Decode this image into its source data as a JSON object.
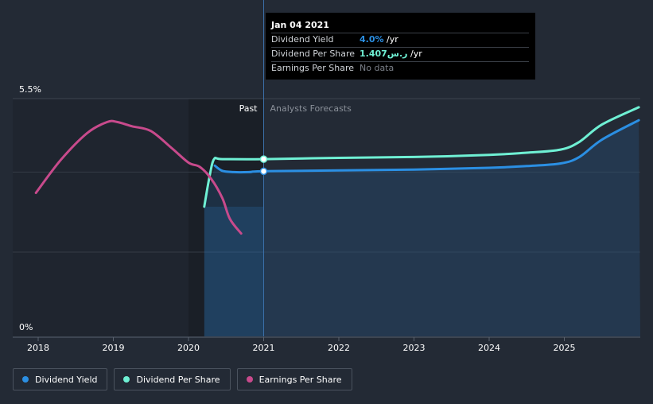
{
  "chart_data": {
    "type": "line",
    "x_ticks": [
      "2018",
      "2019",
      "2020",
      "2021",
      "2022",
      "2023",
      "2024",
      "2025"
    ],
    "y_ticks": [
      "0%",
      "5.5%"
    ],
    "region_labels": {
      "past": "Past",
      "forecast": "Analysts Forecasts"
    },
    "series": [
      {
        "name": "Dividend Yield",
        "color": "#2b8fe3",
        "points": [
          [
            2020.35,
            3.95
          ],
          [
            2020.45,
            3.83
          ],
          [
            2020.6,
            3.8
          ],
          [
            2020.8,
            3.8
          ],
          [
            2021.0,
            3.82
          ],
          [
            2022.0,
            3.84
          ],
          [
            2023.0,
            3.86
          ],
          [
            2024.0,
            3.9
          ],
          [
            2024.5,
            3.94
          ],
          [
            2024.95,
            4.0
          ],
          [
            2025.2,
            4.15
          ],
          [
            2025.5,
            4.55
          ],
          [
            2025.99,
            5.0
          ]
        ]
      },
      {
        "name": "Dividend Per Share",
        "color": "#6ff0d4",
        "points": [
          [
            2020.21,
            3.0
          ],
          [
            2020.28,
            3.7
          ],
          [
            2020.34,
            4.1
          ],
          [
            2020.45,
            4.1
          ],
          [
            2021.0,
            4.1
          ],
          [
            2022.0,
            4.13
          ],
          [
            2023.0,
            4.15
          ],
          [
            2024.0,
            4.2
          ],
          [
            2024.5,
            4.25
          ],
          [
            2024.95,
            4.32
          ],
          [
            2025.2,
            4.5
          ],
          [
            2025.5,
            4.9
          ],
          [
            2025.99,
            5.3
          ]
        ]
      },
      {
        "name": "Earnings Per Share",
        "color": "#c84a8c",
        "points": [
          [
            2017.97,
            3.32
          ],
          [
            2018.3,
            4.08
          ],
          [
            2018.65,
            4.7
          ],
          [
            2018.92,
            4.96
          ],
          [
            2019.05,
            4.96
          ],
          [
            2019.25,
            4.86
          ],
          [
            2019.5,
            4.75
          ],
          [
            2019.78,
            4.35
          ],
          [
            2020.0,
            4.02
          ],
          [
            2020.15,
            3.92
          ],
          [
            2020.3,
            3.65
          ],
          [
            2020.45,
            3.2
          ],
          [
            2020.55,
            2.72
          ],
          [
            2020.7,
            2.38
          ]
        ]
      }
    ],
    "highlight_x": 2021.0,
    "highlight_points": [
      {
        "series": "Dividend Yield",
        "y": 3.82
      },
      {
        "series": "Dividend Per Share",
        "y": 4.1
      }
    ]
  },
  "tooltip": {
    "date": "Jan 04 2021",
    "rows": [
      {
        "label": "Dividend Yield",
        "value": "4.0%",
        "unit": " /yr",
        "style": "blue"
      },
      {
        "label": "Dividend Per Share",
        "value": "1.407ر.س",
        "unit": " /yr",
        "style": "teal"
      },
      {
        "label": "Earnings Per Share",
        "value": "No data",
        "unit": "",
        "style": "grey"
      }
    ]
  },
  "legend": [
    {
      "label": "Dividend Yield",
      "color": "#2b8fe3"
    },
    {
      "label": "Dividend Per Share",
      "color": "#6ff0d4"
    },
    {
      "label": "Earnings Per Share",
      "color": "#c84a8c"
    }
  ]
}
